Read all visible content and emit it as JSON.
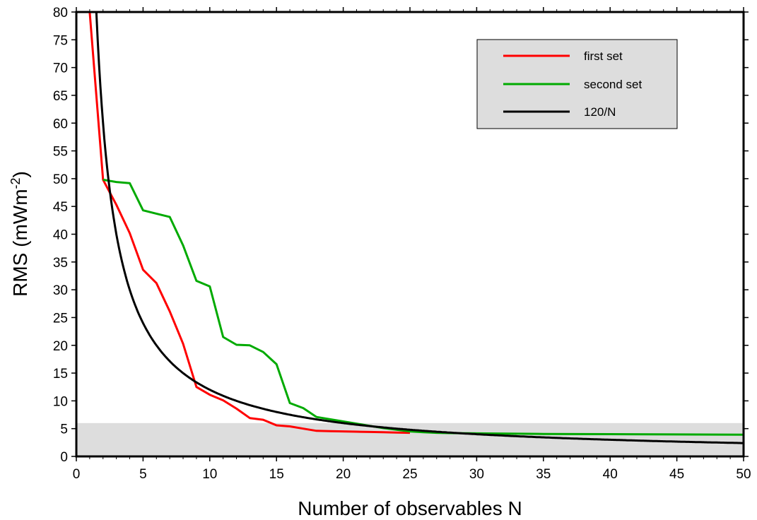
{
  "chart_data": {
    "type": "line",
    "title": "",
    "xlabel": "Number of observables N",
    "ylabel_main": "RMS (mWm",
    "ylabel_sup": "-2",
    "ylabel_end": ")",
    "xlim": [
      0,
      50
    ],
    "ylim": [
      0,
      80
    ],
    "x_ticks": [
      0,
      5,
      10,
      15,
      20,
      25,
      30,
      35,
      40,
      45,
      50
    ],
    "y_ticks": [
      0,
      5,
      10,
      15,
      20,
      25,
      30,
      35,
      40,
      45,
      50,
      55,
      60,
      65,
      70,
      75,
      80
    ],
    "grid": false,
    "legend_position": "top-right",
    "shaded_band": {
      "y_from": 0,
      "y_to": 6,
      "color": "#dddddd"
    },
    "series": [
      {
        "name": "first set",
        "color": "#ff0000",
        "x": [
          1,
          2,
          3,
          4,
          5,
          6,
          7,
          8,
          9,
          10,
          11,
          12,
          13,
          14,
          15,
          16,
          17,
          18,
          19,
          20,
          21,
          22,
          23,
          24,
          25
        ],
        "y": [
          80,
          49.8,
          45.3,
          40.2,
          33.6,
          31.2,
          26.1,
          20.3,
          12.5,
          11.1,
          10.1,
          8.6,
          6.9,
          6.6,
          5.6,
          5.4,
          5.0,
          4.6,
          4.55,
          4.5,
          4.45,
          4.4,
          4.35,
          4.3,
          4.25
        ]
      },
      {
        "name": "second set",
        "color": "#00aa00",
        "x": [
          2,
          3,
          4,
          5,
          6,
          7,
          8,
          9,
          10,
          11,
          12,
          13,
          14,
          15,
          16,
          17,
          18,
          19,
          20,
          21,
          22,
          23,
          24,
          25,
          26,
          27,
          28,
          30,
          35,
          40,
          45,
          50
        ],
        "y": [
          49.8,
          49.4,
          49.2,
          44.3,
          43.7,
          43.1,
          38.0,
          31.6,
          30.6,
          21.5,
          20.1,
          20.0,
          18.8,
          16.6,
          9.6,
          8.7,
          7.1,
          6.7,
          6.3,
          5.9,
          5.5,
          5.1,
          4.8,
          4.5,
          4.35,
          4.25,
          4.2,
          4.15,
          4.05,
          4.0,
          3.95,
          3.9
        ]
      },
      {
        "name": "120/N",
        "color": "#000000",
        "formula": "120/N",
        "x_start": 1.5,
        "x_end": 50
      }
    ]
  }
}
